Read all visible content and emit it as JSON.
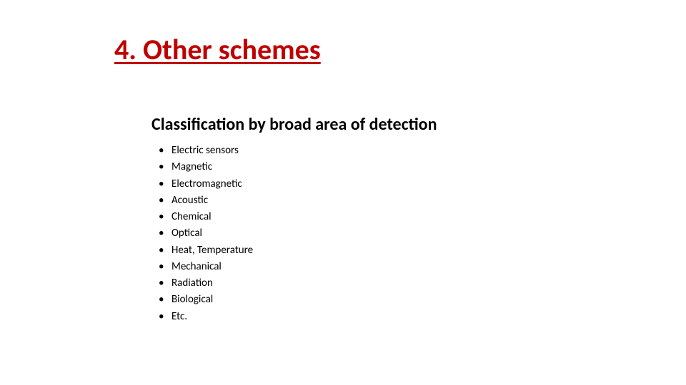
{
  "colors": {
    "title": "#c00000",
    "subheading": "#000000",
    "body_text": "#000000",
    "background": "#ffffff"
  },
  "typography": {
    "title_fontsize": 40,
    "title_weight": 700,
    "title_underline": true,
    "subheading_fontsize": 24,
    "subheading_weight": 700,
    "bullet_fontsize": 15
  },
  "title": "4. Other schemes",
  "subheading": "Classification by broad area of detection",
  "bullets": [
    "Electric sensors",
    "Magnetic",
    "Electromagnetic",
    "Acoustic",
    "Chemical",
    "Optical",
    "Heat, Temperature",
    "Mechanical",
    "Radiation",
    "Biological",
    "Etc."
  ]
}
